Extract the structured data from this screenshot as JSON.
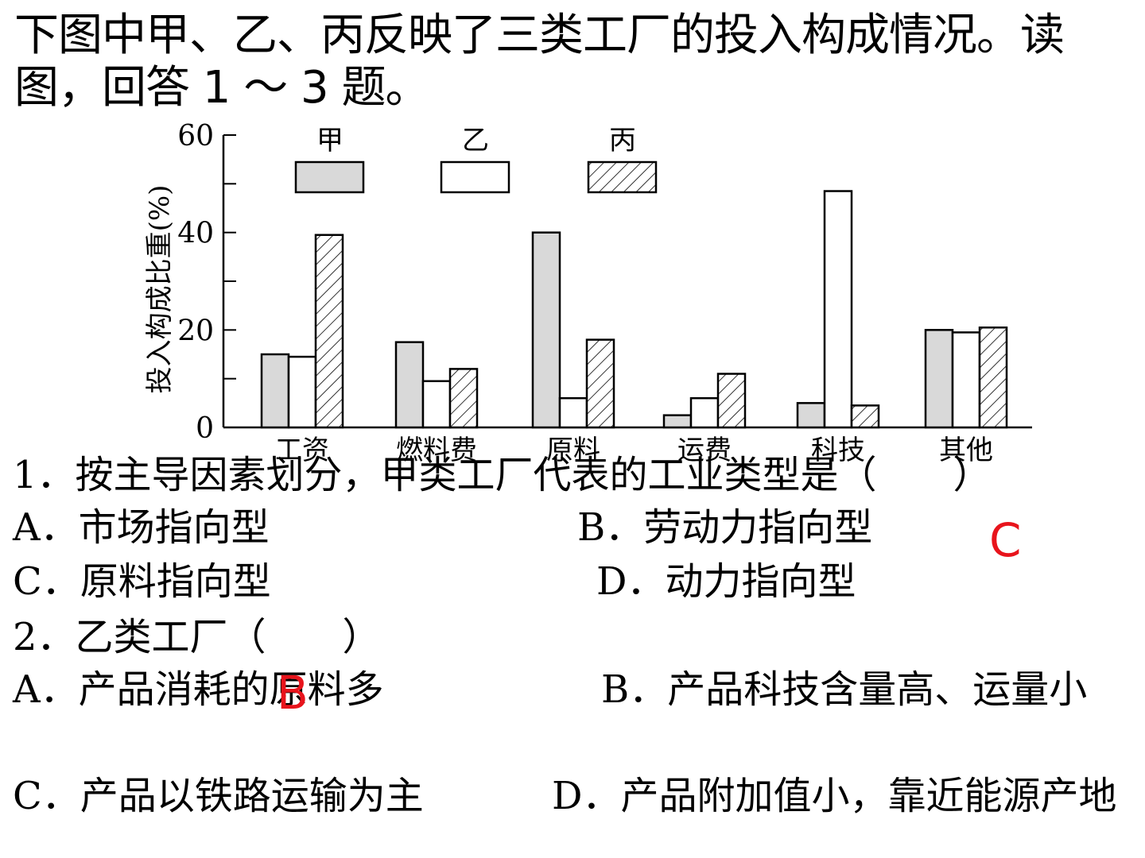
{
  "intro": "下图中甲、乙、丙反映了三类工厂的投入构成情况。读图，回答 1 ～ 3 题。",
  "chart_data": {
    "type": "bar",
    "ylabel": "投入构成比重(%)",
    "ylim": [
      0,
      60
    ],
    "yticks": [
      "0",
      "20",
      "40",
      "60"
    ],
    "categories": [
      "工资",
      "燃料费",
      "原料",
      "运费",
      "科技",
      "其他"
    ],
    "series": [
      {
        "name": "甲",
        "fill": "#d9d9d9",
        "values": [
          15,
          17.5,
          40,
          2.5,
          5,
          20
        ]
      },
      {
        "name": "乙",
        "fill": "#ffffff",
        "values": [
          14.5,
          9.5,
          6,
          6,
          48.5,
          19.5
        ]
      },
      {
        "name": "丙",
        "fill": "hatch",
        "values": [
          39.5,
          12,
          18,
          11,
          4.5,
          20.5
        ]
      }
    ],
    "legend": "top"
  },
  "q1": {
    "stem": "1．按主导因素划分，甲类工厂代表的工业类型是（　　）",
    "optA": "A．市场指向型",
    "optB": "B．劳动力指向型",
    "optC": "C．原料指向型",
    "optD": "D．动力指向型",
    "answer": "C"
  },
  "q2": {
    "stem": "2．乙类工厂（　　）",
    "optA": "A．产品消耗的原料多",
    "optB": "B．产品科技含量高、运量小",
    "optC": "C．产品以铁路运输为主",
    "optD": "D．产品附加值小，靠近能源产地",
    "answer": "B"
  },
  "colors": {
    "answer": "#e8141c"
  }
}
